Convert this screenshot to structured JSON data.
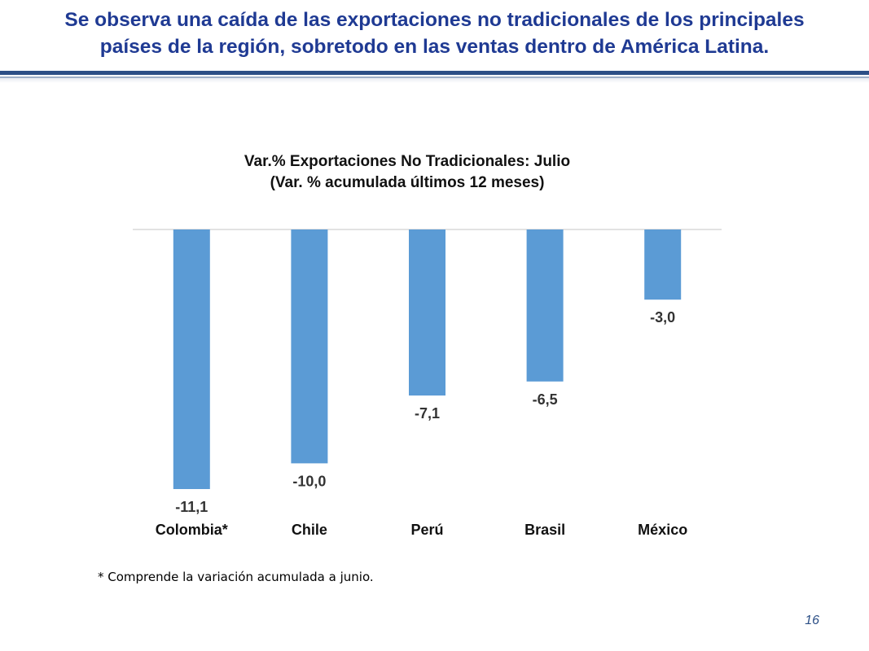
{
  "slide": {
    "title_line1": "Se observa una caída de las exportaciones no tradicionales de los principales",
    "title_line2": "países de la región, sobretodo en las ventas dentro de América Latina.",
    "footnote": "* Comprende la variación acumulada a junio.",
    "page_number": "16"
  },
  "colors": {
    "title": "#1f3a93",
    "bar": "#5b9bd5",
    "rule": "#2c4f86"
  },
  "chart_data": {
    "type": "bar",
    "title": "Var.% Exportaciones No Tradicionales: Julio",
    "subtitle": "(Var. % acumulada últimos 12 meses)",
    "categories": [
      "Colombia*",
      "Chile",
      "Perú",
      "Brasil",
      "México"
    ],
    "values": [
      -11.1,
      -10.0,
      -7.1,
      -6.5,
      -3.0
    ],
    "value_labels": [
      "-11,1",
      "-10,0",
      "-7,1",
      "-6,5",
      "-3,0"
    ],
    "xlabel": "",
    "ylabel": "",
    "ylim": [
      -11.1,
      0
    ],
    "grid": false
  }
}
